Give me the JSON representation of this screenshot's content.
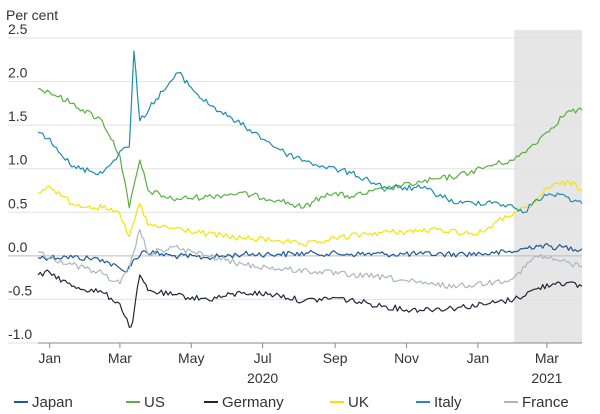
{
  "chart_data": {
    "type": "line",
    "title": "",
    "ylabel": "Per cent",
    "ylim": [
      -1.0,
      2.5
    ],
    "xlim": [
      "2019-12-22",
      "2021-03-31"
    ],
    "yticks": [
      {
        "value": 2.5,
        "label": "2.5"
      },
      {
        "value": 2.0,
        "label": "2.0"
      },
      {
        "value": 1.5,
        "label": "1.5"
      },
      {
        "value": 1.0,
        "label": "1.0"
      },
      {
        "value": 0.5,
        "label": "0.5"
      },
      {
        "value": 0.0,
        "label": "0.0"
      },
      {
        "value": -0.5,
        "label": "-0.5"
      },
      {
        "value": -1.0,
        "label": "-1.0"
      }
    ],
    "xticks": [
      {
        "date": "2020-01-01",
        "label": "Jan"
      },
      {
        "date": "2020-03-01",
        "label": "Mar"
      },
      {
        "date": "2020-05-01",
        "label": "May"
      },
      {
        "date": "2020-07-01",
        "label": "Jul"
      },
      {
        "date": "2020-09-01",
        "label": "Sep"
      },
      {
        "date": "2020-11-01",
        "label": "Nov"
      },
      {
        "date": "2021-01-01",
        "label": "Jan"
      },
      {
        "date": "2021-03-01",
        "label": "Mar"
      }
    ],
    "year_labels": [
      {
        "date": "2020-07-01",
        "label": "2020"
      },
      {
        "date": "2021-03-01",
        "label": "2021"
      }
    ],
    "shaded_region": {
      "start": "2021-02-01",
      "end": "2021-03-31",
      "color": "#e6e6e6"
    },
    "grid": true,
    "legend_position": "bottom",
    "series": [
      {
        "name": "Japan",
        "color": "#1f5a96",
        "x": [
          "2019-12-22",
          "2020-01-15",
          "2020-02-15",
          "2020-03-05",
          "2020-03-20",
          "2020-04-15",
          "2020-05-15",
          "2020-06-15",
          "2020-07-15",
          "2020-08-15",
          "2020-09-15",
          "2020-10-15",
          "2020-11-15",
          "2020-12-15",
          "2021-01-15",
          "2021-02-01",
          "2021-02-20",
          "2021-03-10",
          "2021-03-31"
        ],
        "values": [
          -0.02,
          -0.01,
          -0.04,
          -0.18,
          0.05,
          0.0,
          -0.02,
          0.02,
          0.02,
          0.03,
          0.02,
          0.02,
          0.02,
          0.02,
          0.03,
          0.05,
          0.12,
          0.1,
          0.08
        ]
      },
      {
        "name": "US",
        "color": "#5ab040",
        "x": [
          "2019-12-22",
          "2020-01-01",
          "2020-01-20",
          "2020-02-15",
          "2020-03-01",
          "2020-03-09",
          "2020-03-18",
          "2020-03-25",
          "2020-04-15",
          "2020-05-15",
          "2020-06-10",
          "2020-07-15",
          "2020-08-05",
          "2020-08-25",
          "2020-09-15",
          "2020-10-15",
          "2020-11-15",
          "2020-12-15",
          "2021-01-15",
          "2021-02-01",
          "2021-02-15",
          "2021-03-01",
          "2021-03-18",
          "2021-03-31"
        ],
        "values": [
          1.92,
          1.88,
          1.75,
          1.55,
          1.15,
          0.55,
          1.1,
          0.75,
          0.65,
          0.68,
          0.72,
          0.64,
          0.55,
          0.72,
          0.68,
          0.77,
          0.85,
          0.92,
          1.05,
          1.1,
          1.25,
          1.42,
          1.65,
          1.67
        ]
      },
      {
        "name": "Germany",
        "color": "#1e2a3a",
        "x": [
          "2019-12-22",
          "2020-01-01",
          "2020-01-20",
          "2020-02-15",
          "2020-03-01",
          "2020-03-09",
          "2020-03-12",
          "2020-03-18",
          "2020-03-25",
          "2020-04-15",
          "2020-05-15",
          "2020-06-15",
          "2020-07-15",
          "2020-08-05",
          "2020-09-01",
          "2020-10-01",
          "2020-11-01",
          "2020-12-10",
          "2021-01-10",
          "2021-02-01",
          "2021-02-20",
          "2021-03-10",
          "2021-03-31"
        ],
        "values": [
          -0.22,
          -0.19,
          -0.35,
          -0.42,
          -0.55,
          -0.82,
          -0.75,
          -0.22,
          -0.4,
          -0.45,
          -0.5,
          -0.42,
          -0.45,
          -0.52,
          -0.48,
          -0.55,
          -0.62,
          -0.6,
          -0.55,
          -0.5,
          -0.38,
          -0.3,
          -0.35
        ]
      },
      {
        "name": "UK",
        "color": "#f2e600",
        "x": [
          "2019-12-22",
          "2020-01-01",
          "2020-01-20",
          "2020-02-15",
          "2020-03-01",
          "2020-03-09",
          "2020-03-18",
          "2020-03-25",
          "2020-04-15",
          "2020-05-15",
          "2020-06-15",
          "2020-07-15",
          "2020-08-05",
          "2020-09-01",
          "2020-10-01",
          "2020-11-01",
          "2020-12-01",
          "2021-01-01",
          "2021-02-01",
          "2021-02-15",
          "2021-03-01",
          "2021-03-20",
          "2021-03-31"
        ],
        "values": [
          0.72,
          0.8,
          0.6,
          0.55,
          0.48,
          0.22,
          0.6,
          0.35,
          0.32,
          0.25,
          0.2,
          0.18,
          0.12,
          0.2,
          0.26,
          0.28,
          0.3,
          0.25,
          0.5,
          0.55,
          0.78,
          0.85,
          0.75
        ]
      },
      {
        "name": "Italy",
        "color": "#1d8eae",
        "x": [
          "2019-12-22",
          "2020-01-01",
          "2020-01-20",
          "2020-02-15",
          "2020-02-25",
          "2020-03-01",
          "2020-03-09",
          "2020-03-13",
          "2020-03-18",
          "2020-04-01",
          "2020-04-20",
          "2020-05-10",
          "2020-06-01",
          "2020-06-20",
          "2020-07-20",
          "2020-08-15",
          "2020-09-15",
          "2020-10-15",
          "2020-11-15",
          "2020-12-15",
          "2021-01-15",
          "2021-02-01",
          "2021-02-10",
          "2021-02-20",
          "2021-03-10",
          "2021-03-31"
        ],
        "values": [
          1.42,
          1.35,
          1.02,
          0.95,
          1.1,
          1.2,
          1.25,
          2.35,
          1.55,
          1.8,
          2.1,
          1.8,
          1.6,
          1.45,
          1.18,
          1.05,
          0.95,
          0.78,
          0.78,
          0.6,
          0.62,
          0.55,
          0.5,
          0.65,
          0.72,
          0.6
        ]
      },
      {
        "name": "France",
        "color": "#aeb5bd",
        "x": [
          "2019-12-22",
          "2020-01-01",
          "2020-01-20",
          "2020-02-15",
          "2020-03-01",
          "2020-03-09",
          "2020-03-18",
          "2020-03-25",
          "2020-04-15",
          "2020-05-15",
          "2020-06-15",
          "2020-07-15",
          "2020-08-15",
          "2020-09-15",
          "2020-10-15",
          "2020-11-15",
          "2020-12-15",
          "2021-01-15",
          "2021-02-01",
          "2021-02-20",
          "2021-03-10",
          "2021-03-31"
        ],
        "values": [
          0.05,
          -0.02,
          -0.1,
          -0.2,
          -0.32,
          -0.15,
          0.3,
          0.02,
          0.1,
          0.0,
          -0.1,
          -0.15,
          -0.18,
          -0.22,
          -0.25,
          -0.32,
          -0.35,
          -0.3,
          -0.25,
          0.0,
          -0.05,
          -0.12
        ]
      }
    ]
  }
}
